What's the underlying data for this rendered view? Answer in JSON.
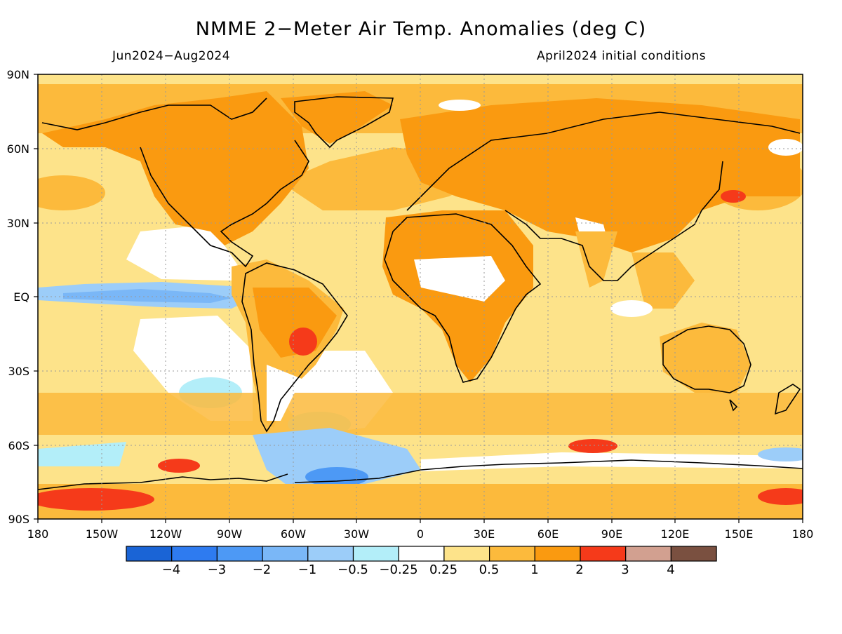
{
  "title": "NMME 2−Meter Air Temp. Anomalies (deg C)",
  "period": "Jun2024−Aug2024",
  "init": "April2024 initial conditions",
  "lat_labels": [
    "90N",
    "60N",
    "30N",
    "EQ",
    "30S",
    "60S",
    "90S"
  ],
  "lon_labels": [
    "180",
    "150W",
    "120W",
    "90W",
    "60W",
    "30W",
    "0",
    "30E",
    "60E",
    "90E",
    "120E",
    "150E",
    "180"
  ],
  "colorbar": {
    "colors": [
      "#1a64d6",
      "#2e7bf0",
      "#4d99f5",
      "#7ab7f7",
      "#9ccdf9",
      "#b3eef9",
      "#ffffff",
      "#fde38a",
      "#fcba3c",
      "#fa9a10",
      "#f53a1a",
      "#d2a090",
      "#7a5040"
    ],
    "labels": [
      "−4",
      "−3",
      "−2",
      "−1",
      "−0.5",
      "−0.25",
      "0.25",
      "0.5",
      "1",
      "2",
      "3",
      "4"
    ]
  }
}
